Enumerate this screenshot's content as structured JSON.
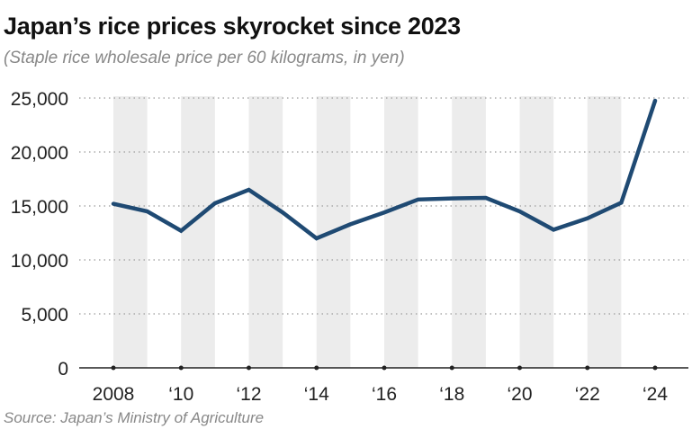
{
  "chart_data": {
    "type": "line",
    "title": "Japan’s rice prices skyrocket since 2023",
    "subtitle": "(Staple rice wholesale price per 60 kilograms, in yen)",
    "source": "Source: Japan’s Ministry of Agriculture",
    "xlabel": "",
    "ylabel": "",
    "x": [
      2008,
      2009,
      2010,
      2011,
      2012,
      2013,
      2014,
      2015,
      2016,
      2017,
      2018,
      2019,
      2020,
      2021,
      2022,
      2023,
      2024
    ],
    "series": [
      {
        "values": [
          15200,
          14500,
          12700,
          15250,
          16500,
          14400,
          12000,
          13300,
          14400,
          15600,
          15700,
          15750,
          14500,
          12800,
          13850,
          15300,
          24750
        ],
        "color": "#1f4a73"
      }
    ],
    "xlim": [
      2008,
      2024
    ],
    "ylim": [
      0,
      25000
    ],
    "yticks": [
      0,
      5000,
      10000,
      15000,
      20000,
      25000
    ],
    "ytick_labels": [
      "0",
      "5,000",
      "10,000",
      "15,000",
      "20,000",
      "25,000"
    ],
    "xticks": [
      2008,
      2010,
      2012,
      2014,
      2016,
      2018,
      2020,
      2022,
      2024
    ],
    "xtick_labels": [
      "2008",
      "‘10",
      "‘12",
      "‘14",
      "‘16",
      "‘18",
      "‘20",
      "‘22",
      "‘24"
    ],
    "grid": "horizontal dotted",
    "band_color": "#ececec"
  }
}
